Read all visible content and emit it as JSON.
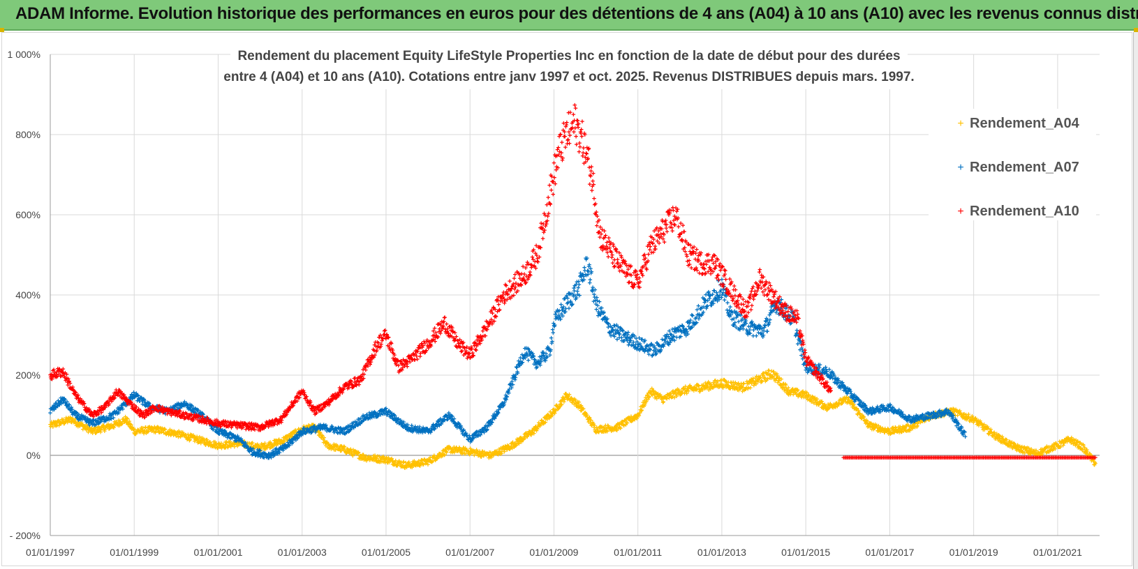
{
  "banner": {
    "title": "ADAM Informe. Evolution historique des performances en euros pour des détentions de 4 ans (A04) à 10 ans (A10) avec les revenus connus distribués",
    "color": "#7fc97a"
  },
  "chart_data": {
    "type": "scatter",
    "title": "Rendement du placement Equity LifeStyle  Properties Inc en fonction de la date de début pour des durées entre 4 (A04) et 10 ans (A10).  Cotations entre janv 1997 et oct. 2025.  Revenus DISTRIBUES depuis mars. 1997.",
    "title_lines": [
      "Rendement du placement Equity LifeStyle  Properties Inc en fonction de la date de début pour des durées",
      "entre 4 (A04) et 10 ans (A10).  Cotations entre janv 1997 et oct. 2025.  Revenus DISTRIBUES depuis mars. 1997."
    ],
    "xlabel": "",
    "ylabel": "",
    "xlim": [
      1997.0,
      2022.0
    ],
    "ylim": [
      -200,
      1000
    ],
    "x_ticks": [
      1997,
      1999,
      2001,
      2003,
      2005,
      2007,
      2009,
      2011,
      2013,
      2015,
      2017,
      2019,
      2021
    ],
    "x_tick_labels": [
      "01/01/1997",
      "01/01/1999",
      "01/01/2001",
      "01/01/2003",
      "01/01/2005",
      "01/01/2007",
      "01/01/2009",
      "01/01/2011",
      "01/01/2013",
      "01/01/2015",
      "01/01/2017",
      "01/01/2019",
      "01/01/2021"
    ],
    "y_ticks": [
      -200,
      0,
      200,
      400,
      600,
      800,
      1000
    ],
    "y_tick_labels": [
      "- 200%",
      "0%",
      "200%",
      "400%",
      "600%",
      "800%",
      "1 000%"
    ],
    "grid": true,
    "legend_position": "top-right",
    "series": [
      {
        "name": "Rendement_A04",
        "color": "#ffc000",
        "x": [
          1997.0,
          1997.5,
          1998.0,
          1998.5,
          1998.8,
          1999.0,
          1999.5,
          2000.0,
          2000.5,
          2001.0,
          2001.5,
          2002.0,
          2002.5,
          2003.0,
          2003.3,
          2003.6,
          2004.0,
          2004.5,
          2005.0,
          2005.5,
          2006.0,
          2006.5,
          2007.0,
          2007.5,
          2008.0,
          2008.5,
          2008.8,
          2009.0,
          2009.3,
          2009.6,
          2010.0,
          2010.5,
          2011.0,
          2011.3,
          2011.6,
          2012.0,
          2012.5,
          2013.0,
          2013.5,
          2013.9,
          2014.2,
          2014.6,
          2015.0,
          2015.5,
          2016.0,
          2016.5,
          2017.0,
          2017.5,
          2018.0,
          2018.5,
          2019.0,
          2019.5,
          2020.0,
          2020.5,
          2021.0,
          2021.3,
          2021.6,
          2021.9
        ],
        "values": [
          75,
          90,
          60,
          75,
          90,
          60,
          65,
          55,
          40,
          25,
          30,
          20,
          35,
          65,
          70,
          25,
          15,
          -5,
          -10,
          -25,
          -15,
          15,
          10,
          0,
          25,
          60,
          90,
          110,
          150,
          125,
          65,
          70,
          100,
          160,
          140,
          160,
          170,
          180,
          170,
          190,
          205,
          160,
          150,
          120,
          140,
          75,
          60,
          70,
          100,
          110,
          90,
          50,
          20,
          5,
          25,
          40,
          20,
          -20
        ]
      },
      {
        "name": "Rendement_A07",
        "color": "#0070c0",
        "x": [
          1997.0,
          1997.3,
          1997.6,
          1998.0,
          1998.5,
          1998.8,
          1999.0,
          1999.4,
          1999.8,
          2000.2,
          2000.6,
          2001.0,
          2001.5,
          2001.8,
          2002.2,
          2002.6,
          2003.0,
          2003.5,
          2004.0,
          2004.5,
          2005.0,
          2005.5,
          2006.0,
          2006.5,
          2007.0,
          2007.4,
          2007.8,
          2008.0,
          2008.3,
          2008.6,
          2008.9,
          2009.0,
          2009.3,
          2009.6,
          2009.8,
          2010.0,
          2010.3,
          2010.6,
          2011.0,
          2011.4,
          2011.8,
          2012.2,
          2012.6,
          2013.0,
          2013.2,
          2013.6,
          2014.0,
          2014.3,
          2014.7,
          2015.0,
          2015.5,
          2016.0,
          2016.5,
          2017.0,
          2017.5,
          2018.0,
          2018.4,
          2018.8
        ],
        "values": [
          110,
          140,
          100,
          80,
          100,
          130,
          150,
          120,
          110,
          130,
          100,
          60,
          40,
          10,
          0,
          20,
          60,
          70,
          60,
          95,
          110,
          70,
          60,
          100,
          40,
          70,
          130,
          180,
          260,
          230,
          260,
          330,
          380,
          420,
          480,
          380,
          320,
          300,
          280,
          260,
          300,
          320,
          380,
          420,
          350,
          320,
          310,
          380,
          340,
          220,
          210,
          160,
          110,
          120,
          90,
          100,
          110,
          50
        ]
      },
      {
        "name": "Rendement_A10",
        "color": "#ff0000",
        "x": [
          1997.0,
          1997.3,
          1997.6,
          1998.0,
          1998.3,
          1998.6,
          1998.9,
          1999.2,
          1999.5,
          1999.8,
          2000.2,
          2000.6,
          2001.0,
          2001.5,
          2002.0,
          2002.5,
          2003.0,
          2003.3,
          2003.6,
          2004.0,
          2004.4,
          2004.8,
          2005.0,
          2005.3,
          2005.6,
          2006.0,
          2006.4,
          2006.7,
          2007.0,
          2007.4,
          2007.8,
          2008.0,
          2008.3,
          2008.6,
          2008.9,
          2009.1,
          2009.3,
          2009.5,
          2009.7,
          2009.9,
          2010.1,
          2010.4,
          2010.7,
          2011.0,
          2011.3,
          2011.6,
          2011.9,
          2012.2,
          2012.5,
          2012.8,
          2013.0,
          2013.3,
          2013.6,
          2013.9,
          2014.2,
          2014.5,
          2014.8,
          2015.0,
          2015.3,
          2015.6
        ],
        "values": [
          200,
          210,
          150,
          100,
          120,
          160,
          130,
          100,
          120,
          110,
          100,
          90,
          80,
          75,
          70,
          90,
          160,
          110,
          130,
          170,
          190,
          280,
          300,
          220,
          240,
          280,
          330,
          280,
          250,
          320,
          400,
          420,
          450,
          500,
          650,
          750,
          800,
          830,
          780,
          700,
          550,
          500,
          460,
          430,
          520,
          560,
          600,
          500,
          480,
          480,
          450,
          400,
          360,
          440,
          400,
          360,
          340,
          240,
          200,
          160
        ]
      },
      {
        "name": "Rendement_A10",
        "color": "#ff0000",
        "flat": true,
        "x_range": [
          2015.9,
          2021.9
        ],
        "value": -5
      }
    ]
  }
}
